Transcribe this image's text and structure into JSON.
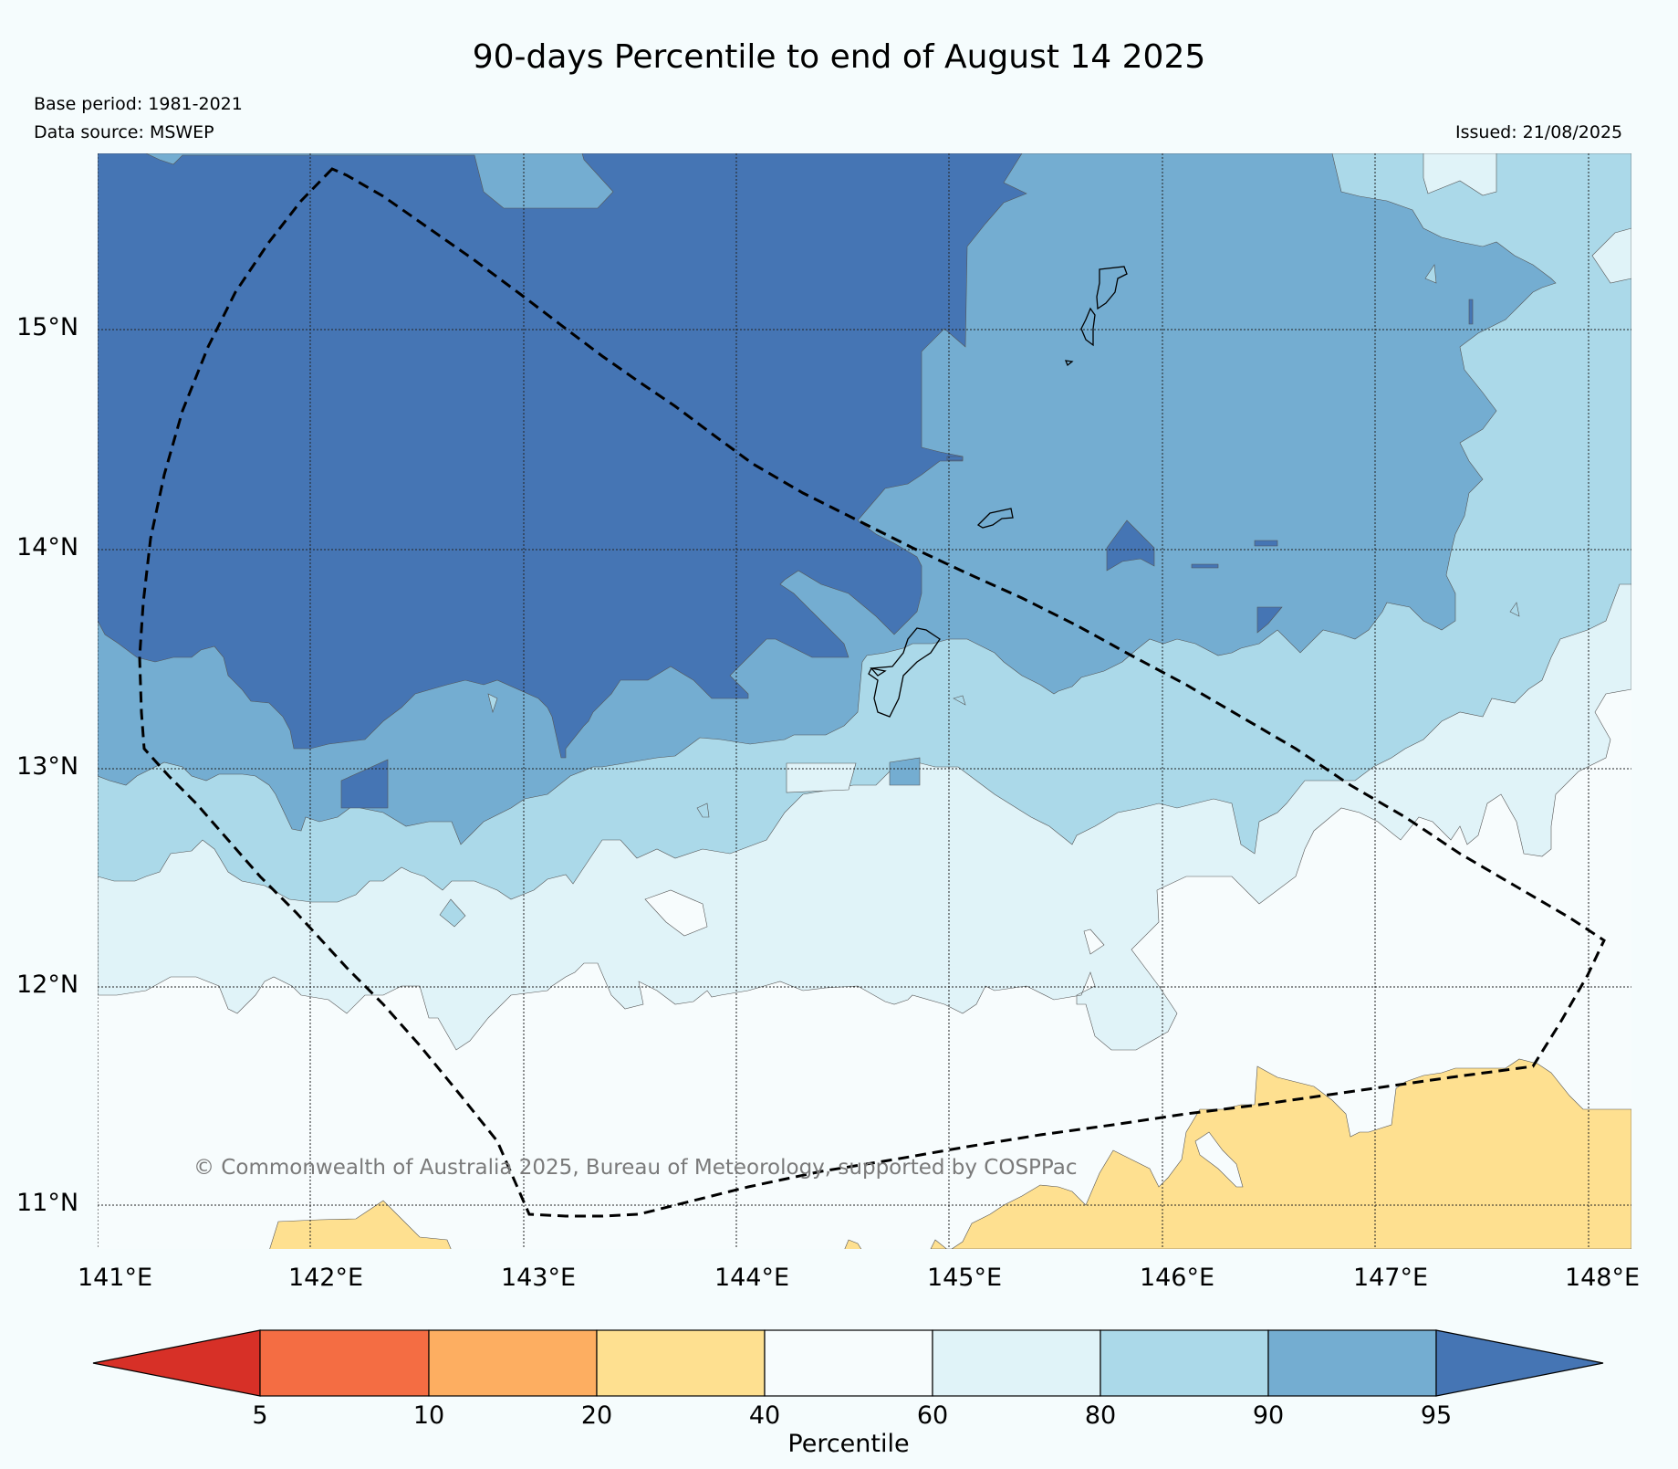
{
  "title": "90-days Percentile to end of August 14 2025",
  "base_period": "Base period: 1981-2021",
  "data_source": "Data source: MSWEP",
  "issued": "Issued: 21/08/2025",
  "copyright": "© Commonwealth of Australia 2025, Bureau of Meteorology, supported by COSPPac",
  "map": {
    "lon_range": [
      141,
      148.2
    ],
    "lat_range": [
      10.8,
      15.8
    ],
    "lat_ticks": [
      "15°N",
      "14°N",
      "13°N",
      "12°N",
      "11°N"
    ],
    "lon_ticks": [
      "141°E",
      "142°E",
      "143°E",
      "144°E",
      "145°E",
      "146°E",
      "147°E",
      "148°E"
    ],
    "gridlines": true,
    "boundary_style": "dashed"
  },
  "colorbar": {
    "label": "Percentile",
    "ticks": [
      "5",
      "10",
      "20",
      "40",
      "60",
      "80",
      "90",
      "95"
    ],
    "colors": {
      "below_5": "#d73027",
      "5_10": "#f46d43",
      "10_20": "#fdae61",
      "20_40": "#fee090",
      "40_60": "#f7fcfd",
      "60_80": "#e0f3f8",
      "80_90": "#abd9e9",
      "90_95": "#74add1",
      "above_95": "#4575b4"
    }
  }
}
